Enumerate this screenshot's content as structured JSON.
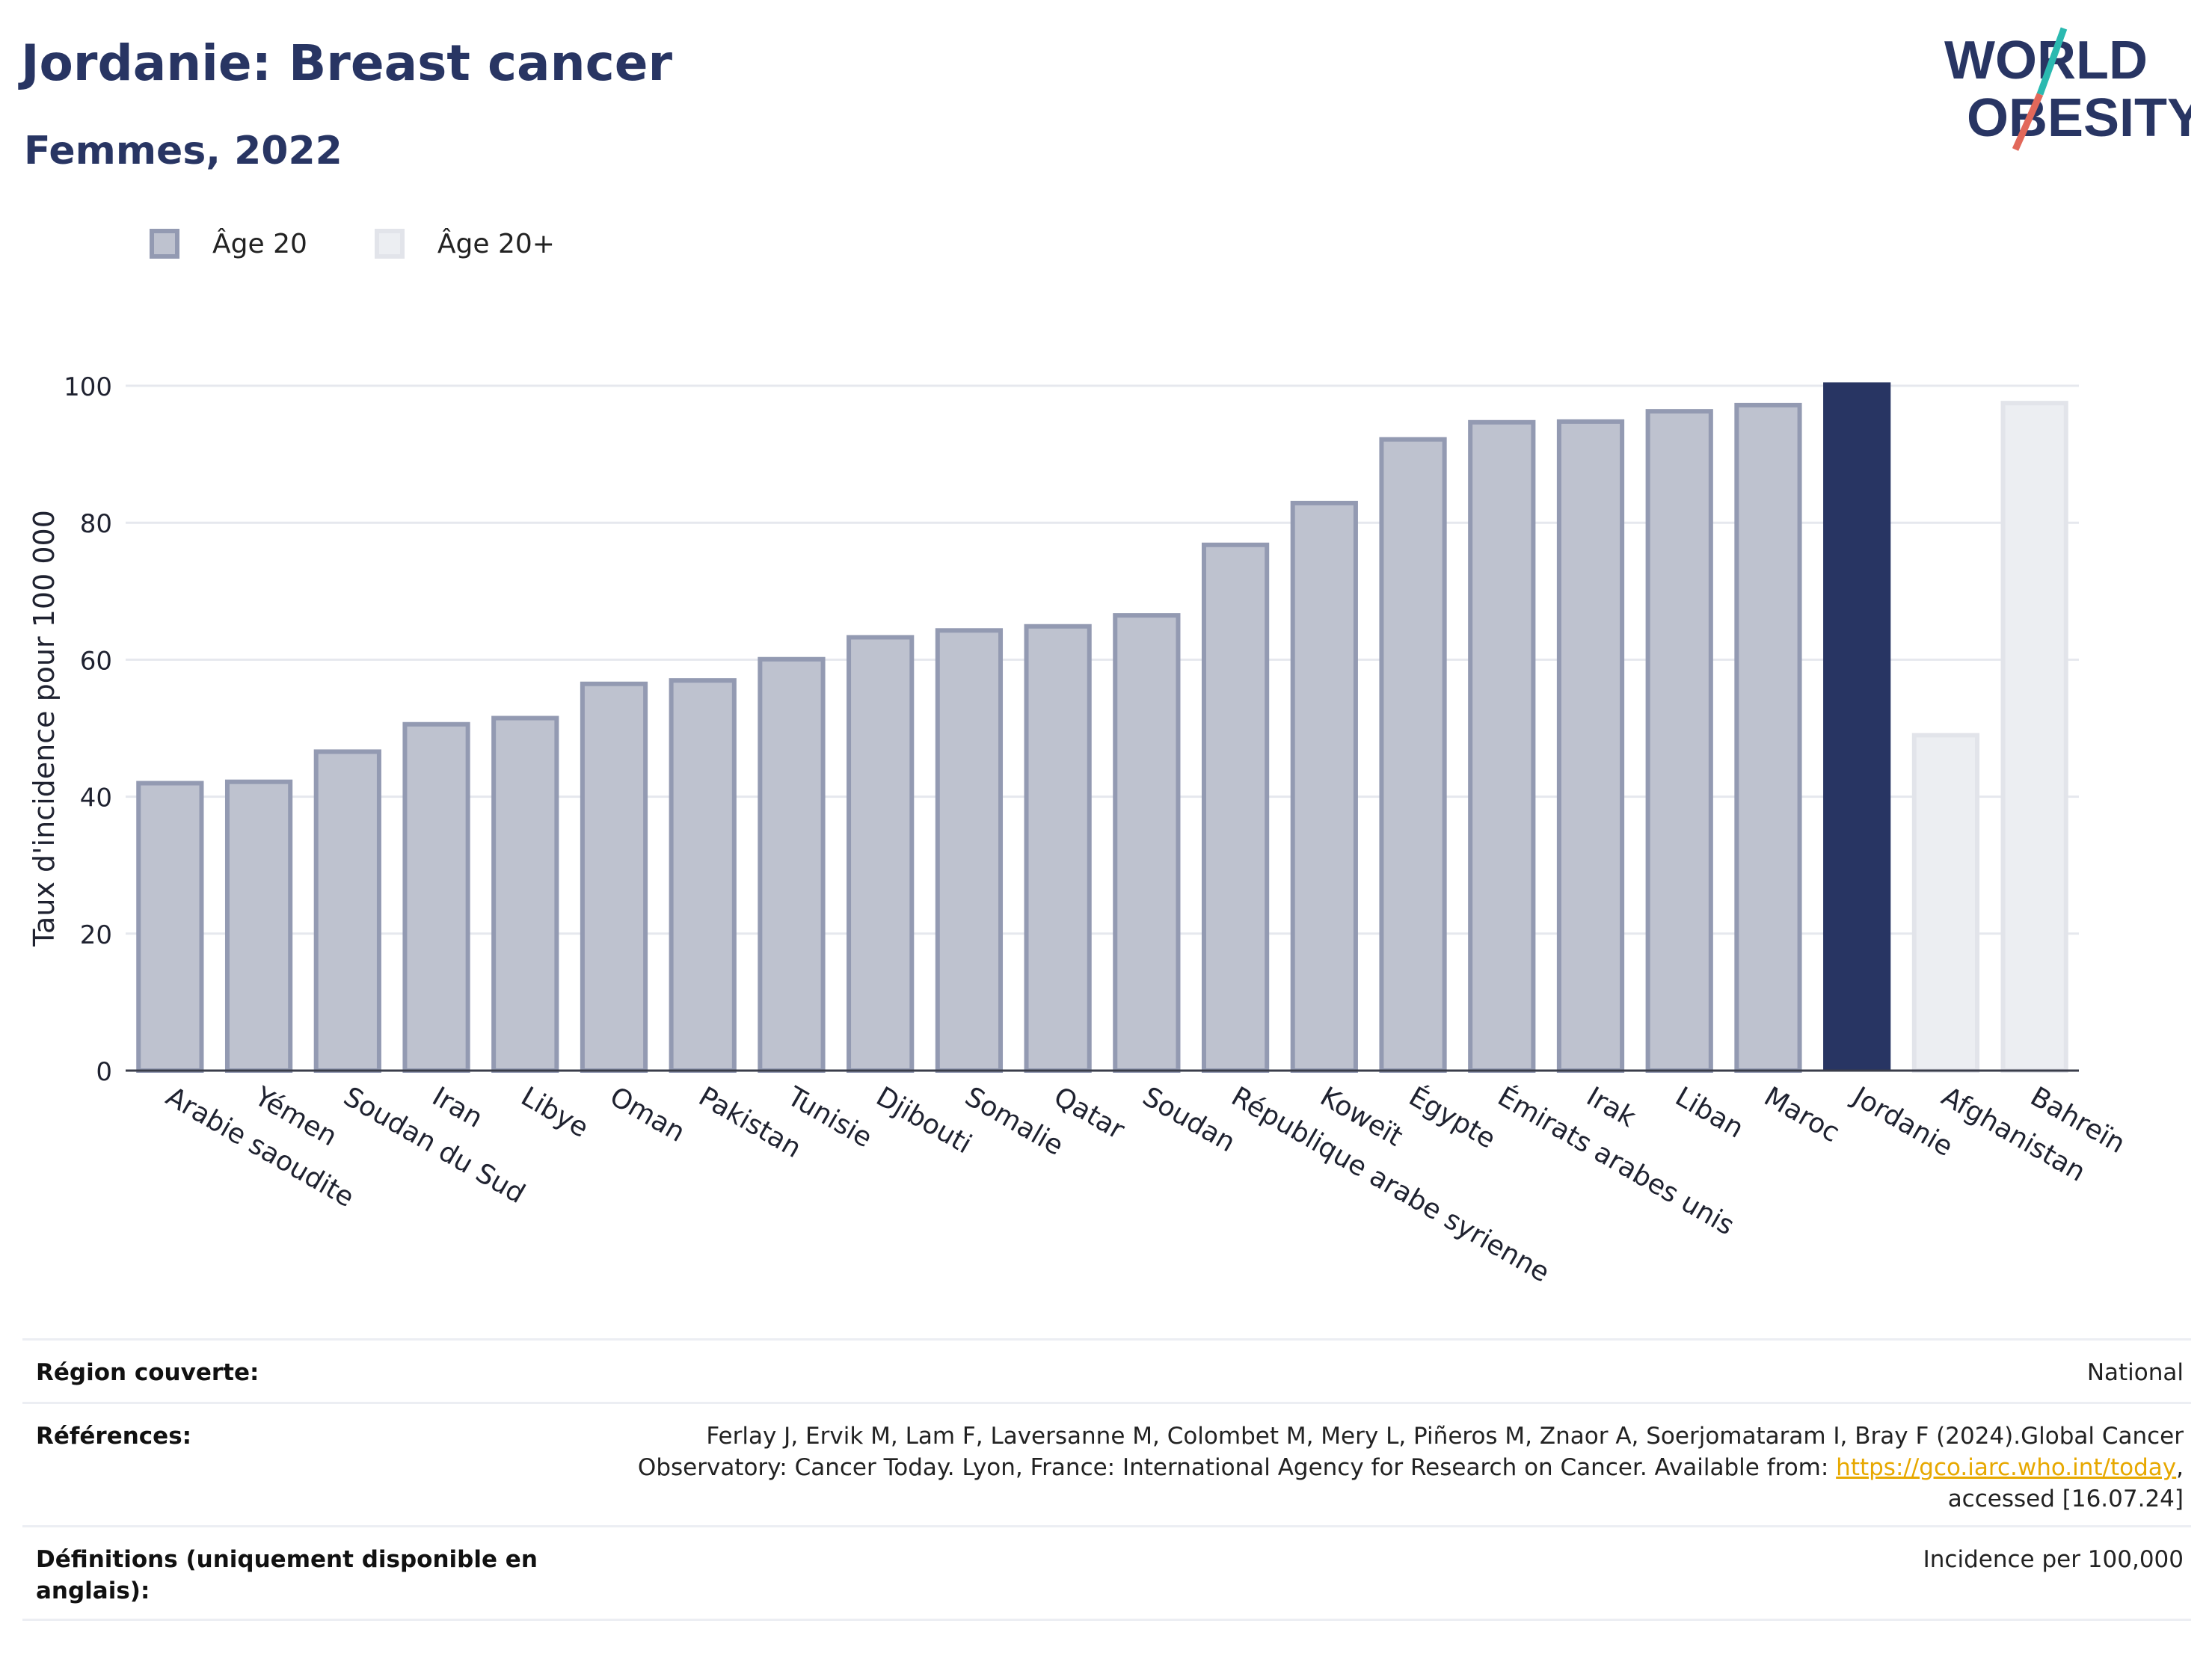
{
  "header": {
    "title": "Jordanie: Breast cancer",
    "subtitle": "Femmes, 2022"
  },
  "logo": {
    "line1": "WORLD",
    "line2": "OBESITY",
    "accent_colors": [
      "#2bb9b0",
      "#e2685a"
    ]
  },
  "legend": {
    "items": [
      {
        "label": "Âge 20",
        "color": "#bec2cf",
        "border": "#939ab2"
      },
      {
        "label": "Âge 20+",
        "color": "#eceef2",
        "border": "#e2e4ea"
      }
    ]
  },
  "chart_data": {
    "type": "bar",
    "ylabel": "Taux d'incidence pour 100 000",
    "xlabel": "",
    "ylim": [
      0,
      100
    ],
    "yticks": [
      0,
      20,
      40,
      60,
      80,
      100
    ],
    "grid": true,
    "colors": {
      "age20": "#bec2cf",
      "age20_border": "#939ab2",
      "highlight": "#283563",
      "age20plus": "#eceef2",
      "age20plus_border": "#e2e4ea"
    },
    "categories": [
      "Arabie saoudite",
      "Yémen",
      "Soudan du Sud",
      "Iran",
      "Libye",
      "Oman",
      "Pakistan",
      "Tunisie",
      "Djibouti",
      "Somalie",
      "Qatar",
      "Soudan",
      "République arabe syrienne",
      "Koweït",
      "Égypte",
      "Émirats arabes unis",
      "Irak",
      "Liban",
      "Maroc",
      "Jordanie",
      "Afghanistan",
      "Bahreïn"
    ],
    "values": [
      42.3,
      42.5,
      46.9,
      50.9,
      51.8,
      56.8,
      57.3,
      60.4,
      63.6,
      64.6,
      65.2,
      66.8,
      77.1,
      83.2,
      92.5,
      95.0,
      95.1,
      96.6,
      97.5,
      100.5,
      49.3,
      97.8
    ],
    "groups": [
      "age20",
      "age20",
      "age20",
      "age20",
      "age20",
      "age20",
      "age20",
      "age20",
      "age20",
      "age20",
      "age20",
      "age20",
      "age20",
      "age20",
      "age20",
      "age20",
      "age20",
      "age20",
      "age20",
      "highlight",
      "age20plus",
      "age20plus"
    ]
  },
  "info": {
    "rows": [
      {
        "label": "Région couverte:",
        "value": "National"
      },
      {
        "label": "Références:",
        "value_before": "Ferlay J, Ervik M, Lam F, Laversanne M, Colombet M, Mery L, Piñeros M, Znaor A, Soerjomataram I, Bray F (2024).Global Cancer Observatory: Cancer Today. Lyon, France: International Agency for Research on Cancer. Available from: ",
        "link": "https://gco.iarc.who.int/today",
        "value_after": ", accessed [16.07.24]"
      },
      {
        "label": "Définitions (uniquement disponible en anglais):",
        "value": "Incidence per 100,000"
      }
    ]
  }
}
